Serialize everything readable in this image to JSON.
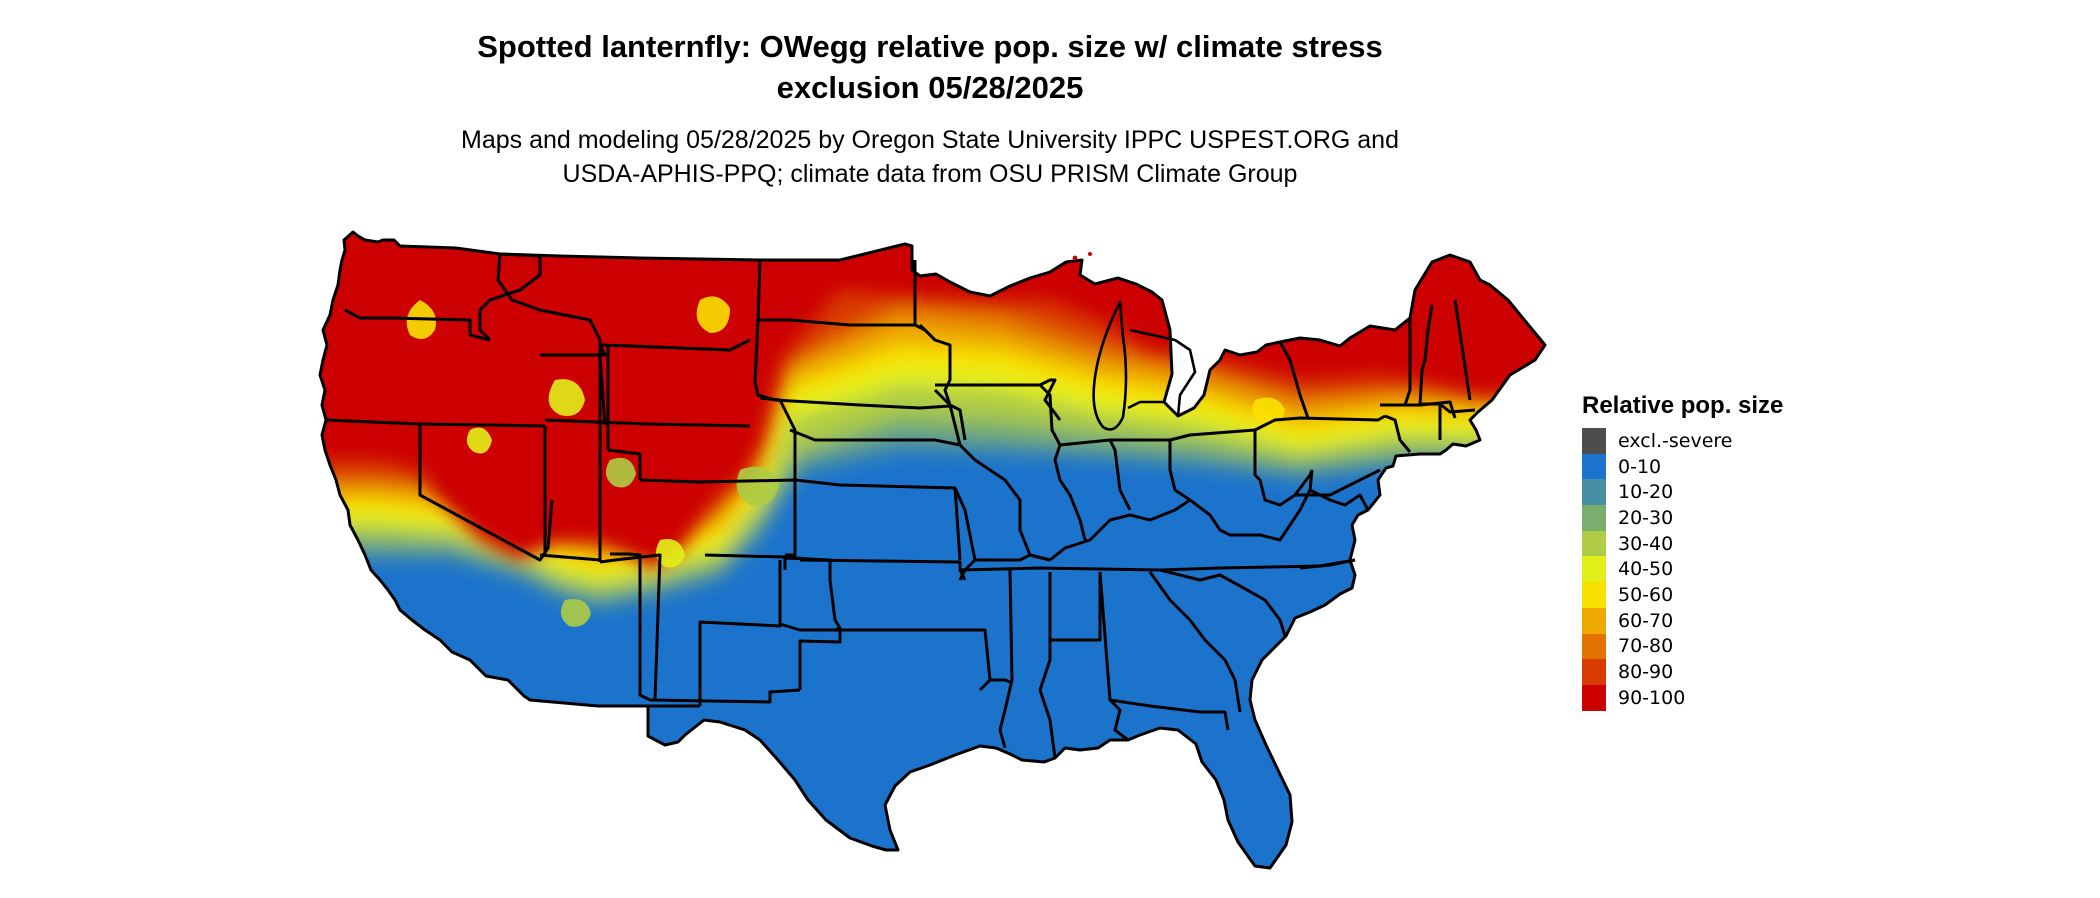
{
  "title_line1": "Spotted lanternfly: OWegg relative pop. size w/ climate stress",
  "title_line2": "exclusion 05/28/2025",
  "subtitle_line1": "Maps and modeling 05/28/2025 by Oregon State University IPPC USPEST.ORG and",
  "subtitle_line2": "USDA-APHIS-PPQ; climate data from OSU PRISM Climate Group",
  "legend": {
    "title": "Relative pop. size",
    "items": [
      {
        "label": "excl.-severe",
        "color": "#4d4d4d"
      },
      {
        "label": "0-10",
        "color": "#1c73cc"
      },
      {
        "label": "10-20",
        "color": "#478fa3"
      },
      {
        "label": "20-30",
        "color": "#7aae6e"
      },
      {
        "label": "30-40",
        "color": "#aecc45"
      },
      {
        "label": "40-50",
        "color": "#e2ef1a"
      },
      {
        "label": "50-60",
        "color": "#f8e100"
      },
      {
        "label": "60-70",
        "color": "#eeaa00"
      },
      {
        "label": "70-80",
        "color": "#e27100"
      },
      {
        "label": "80-90",
        "color": "#d93a00"
      },
      {
        "label": "90-100",
        "color": "#cc0000"
      }
    ]
  },
  "map": {
    "region": "Contiguous United States",
    "state_border_color": "#000000"
  }
}
